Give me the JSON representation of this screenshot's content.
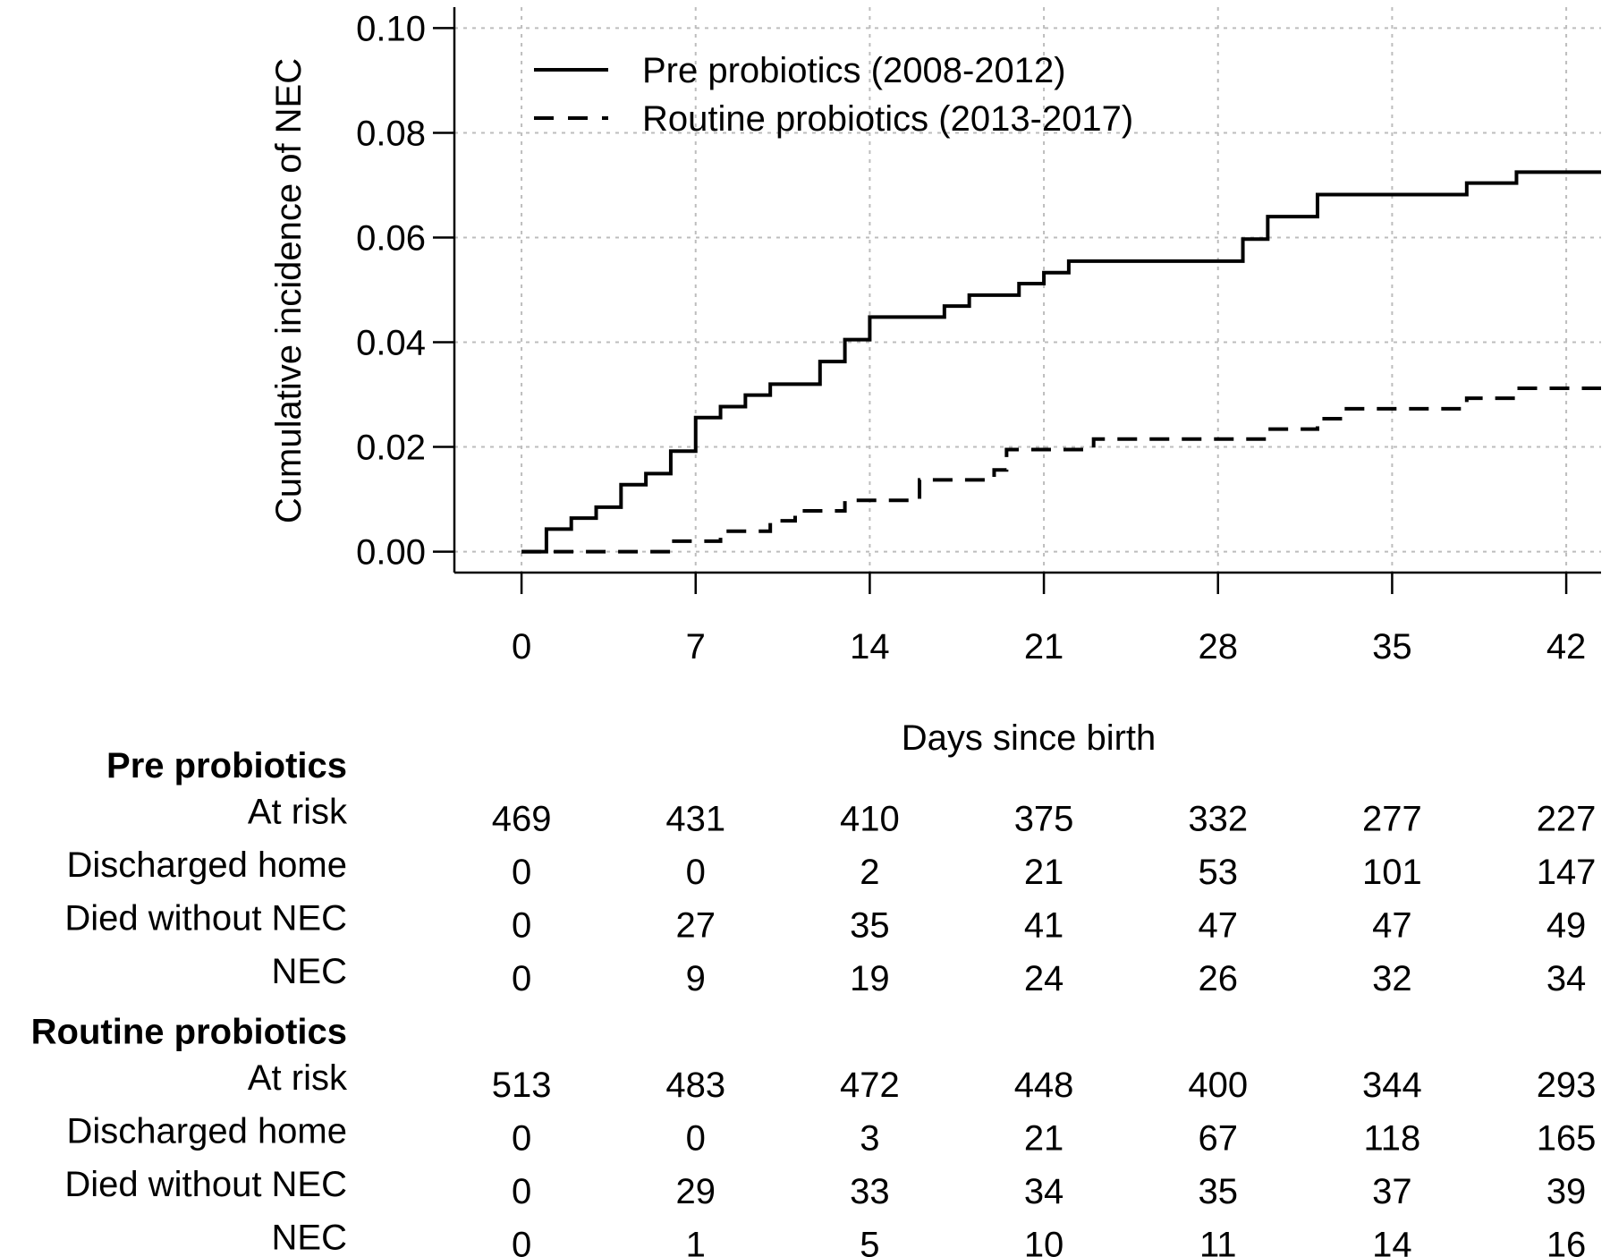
{
  "chart_data": {
    "type": "line",
    "step": true,
    "xlabel": "Days since birth",
    "ylabel": "Cumulative incidence of NEC",
    "xlim": [
      -2.7,
      43.4
    ],
    "ylim": [
      -0.004,
      0.104
    ],
    "xticks": [
      0,
      7,
      14,
      21,
      28,
      35,
      42
    ],
    "xtick_labels": [
      "0",
      "7",
      "14",
      "21",
      "28",
      "35",
      "42"
    ],
    "yticks": [
      0.0,
      0.02,
      0.04,
      0.06,
      0.08,
      0.1
    ],
    "ytick_labels": [
      "0.00",
      "0.02",
      "0.04",
      "0.06",
      "0.08",
      "0.10"
    ],
    "grid": true,
    "legend_position": "top-left",
    "series": [
      {
        "name": "Pre probiotics (2008-2012)",
        "line_style": "solid",
        "points": [
          [
            0,
            0.0
          ],
          [
            1,
            0.0043
          ],
          [
            2,
            0.0064
          ],
          [
            3,
            0.0085
          ],
          [
            4,
            0.0128
          ],
          [
            5,
            0.0149
          ],
          [
            6,
            0.0192
          ],
          [
            7,
            0.0256
          ],
          [
            8,
            0.0277
          ],
          [
            9,
            0.0299
          ],
          [
            10,
            0.032
          ],
          [
            12,
            0.0363
          ],
          [
            13,
            0.0405
          ],
          [
            14,
            0.0448
          ],
          [
            17,
            0.0469
          ],
          [
            18,
            0.049
          ],
          [
            20,
            0.0512
          ],
          [
            21,
            0.0533
          ],
          [
            22,
            0.0555
          ],
          [
            29,
            0.0597
          ],
          [
            30,
            0.064
          ],
          [
            32,
            0.0682
          ],
          [
            38,
            0.0704
          ],
          [
            40,
            0.0725
          ],
          [
            43.4,
            0.0725
          ]
        ]
      },
      {
        "name": "Routine probiotics (2013-2017)",
        "line_style": "dashed",
        "points": [
          [
            0,
            0.0
          ],
          [
            6,
            0.002
          ],
          [
            8,
            0.0039
          ],
          [
            10,
            0.0059
          ],
          [
            11,
            0.0078
          ],
          [
            13,
            0.0098
          ],
          [
            16,
            0.0137
          ],
          [
            19,
            0.0156
          ],
          [
            19.5,
            0.0195
          ],
          [
            23,
            0.0215
          ],
          [
            30,
            0.0234
          ],
          [
            32,
            0.0254
          ],
          [
            33,
            0.0273
          ],
          [
            38,
            0.0293
          ],
          [
            40,
            0.0312
          ],
          [
            43.4,
            0.0312
          ]
        ]
      }
    ]
  },
  "risk_table": {
    "times": [
      "0",
      "7",
      "14",
      "21",
      "28",
      "35",
      "42"
    ],
    "groups": [
      {
        "name": "Pre probiotics",
        "rows": [
          {
            "label": "At risk",
            "values": [
              "469",
              "431",
              "410",
              "375",
              "332",
              "277",
              "227"
            ]
          },
          {
            "label": "Discharged home",
            "values": [
              "0",
              "0",
              "2",
              "21",
              "53",
              "101",
              "147"
            ]
          },
          {
            "label": "Died without NEC",
            "values": [
              "0",
              "27",
              "35",
              "41",
              "47",
              "47",
              "49"
            ]
          },
          {
            "label": "NEC",
            "values": [
              "0",
              "9",
              "19",
              "24",
              "26",
              "32",
              "34"
            ]
          }
        ]
      },
      {
        "name": "Routine probiotics",
        "rows": [
          {
            "label": "At risk",
            "values": [
              "513",
              "483",
              "472",
              "448",
              "400",
              "344",
              "293"
            ]
          },
          {
            "label": "Discharged home",
            "values": [
              "0",
              "0",
              "3",
              "21",
              "67",
              "118",
              "165"
            ]
          },
          {
            "label": "Died without NEC",
            "values": [
              "0",
              "29",
              "33",
              "34",
              "35",
              "37",
              "39"
            ]
          },
          {
            "label": "NEC",
            "values": [
              "0",
              "1",
              "5",
              "10",
              "11",
              "14",
              "16"
            ]
          }
        ]
      }
    ]
  }
}
